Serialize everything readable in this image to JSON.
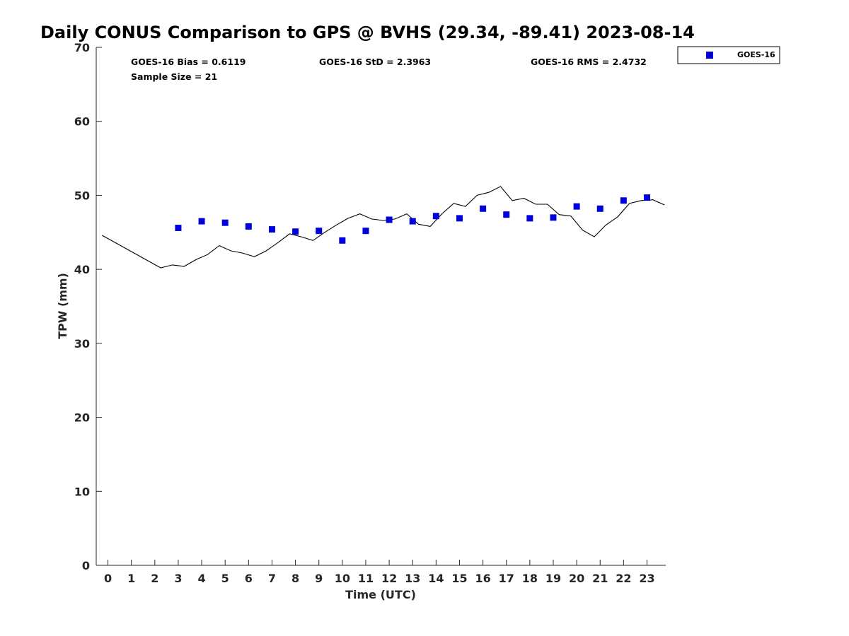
{
  "chart_data": {
    "type": "scatter",
    "title": "Daily CONUS Comparison to GPS @ BVHS (29.34, -89.41) 2023-08-14",
    "xlabel": "Time (UTC)",
    "ylabel": "TPW (mm)",
    "xlim": [
      -0.5,
      23.8
    ],
    "ylim": [
      0,
      70
    ],
    "x_ticks": [
      0,
      1,
      2,
      3,
      4,
      5,
      6,
      7,
      8,
      9,
      10,
      11,
      12,
      13,
      14,
      15,
      16,
      17,
      18,
      19,
      20,
      21,
      22,
      23
    ],
    "y_ticks": [
      0,
      10,
      20,
      30,
      40,
      50,
      60,
      70
    ],
    "grid": false,
    "legend_position": "top-right outside",
    "stats": {
      "bias": "GOES-16 Bias = 0.6119",
      "std": "GOES-16 StD = 2.3963",
      "rms": "GOES-16 RMS = 2.4732",
      "sample": "Sample Size = 21"
    },
    "series": [
      {
        "name": "GOES-16",
        "marker": "square",
        "color": "#0000dd",
        "x": [
          3,
          4,
          5,
          6,
          7,
          8,
          9,
          10,
          11,
          12,
          13,
          14,
          15,
          16,
          17,
          18,
          19,
          20,
          21,
          22,
          23
        ],
        "y": [
          45.6,
          46.5,
          46.3,
          45.8,
          45.4,
          45.1,
          45.2,
          43.9,
          45.2,
          46.7,
          46.5,
          47.2,
          46.9,
          48.2,
          47.4,
          46.9,
          47.0,
          48.5,
          48.2,
          49.3,
          49.7
        ]
      }
    ],
    "reference_line": {
      "color": "#000000",
      "x": [
        -0.25,
        2.25,
        2.75,
        3.25,
        3.75,
        4.25,
        4.75,
        5.25,
        5.75,
        6.25,
        6.75,
        7.25,
        7.75,
        8.25,
        8.75,
        9.25,
        9.75,
        10.25,
        10.75,
        11.25,
        11.75,
        12.25,
        12.75,
        13.25,
        13.75,
        14.25,
        14.75,
        15.25,
        15.75,
        16.25,
        16.75,
        17.25,
        17.75,
        18.25,
        18.75,
        19.25,
        19.75,
        20.25,
        20.75,
        21.25,
        21.75,
        22.25,
        22.75,
        23.25,
        23.75
      ],
      "y": [
        44.6,
        40.2,
        40.6,
        40.4,
        41.3,
        42.0,
        43.2,
        42.5,
        42.2,
        41.7,
        42.5,
        43.6,
        44.8,
        44.4,
        43.9,
        45.0,
        46.0,
        46.9,
        47.5,
        46.8,
        46.6,
        46.8,
        47.5,
        46.1,
        45.8,
        47.5,
        48.9,
        48.5,
        50.0,
        50.4,
        51.2,
        49.3,
        49.6,
        48.8,
        48.8,
        47.4,
        47.2,
        45.3,
        44.4,
        46.0,
        47.1,
        48.9,
        49.3,
        49.4,
        48.7
      ]
    }
  }
}
